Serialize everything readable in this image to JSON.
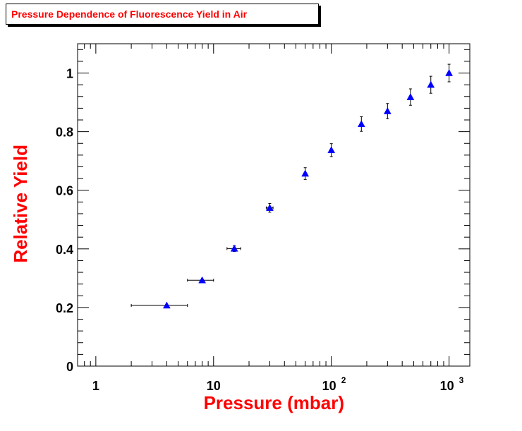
{
  "title": "Pressure Dependence of Fluorescence Yield in Air",
  "colors": {
    "title": "#ff0000",
    "axis_titles": "#ff0000",
    "markers": "#0000ff",
    "error_bars": "#000000",
    "frame": "#000000"
  },
  "chart_data": {
    "type": "scatter",
    "title": "Pressure Dependence of Fluorescence Yield in Air",
    "xlabel": "Pressure (mbar)",
    "ylabel": "Relative Yield",
    "x_scale": "log",
    "xlim": [
      0.7,
      1500
    ],
    "ylim": [
      0,
      1.1
    ],
    "grid": false,
    "legend": "none",
    "marker": "triangle",
    "x_ticks": [
      {
        "label": "1",
        "value": 1
      },
      {
        "label": "10",
        "value": 10
      },
      {
        "label": "10",
        "exponent": "2",
        "value": 100
      },
      {
        "label": "10",
        "exponent": "3",
        "value": 1000
      }
    ],
    "y_ticks": [
      {
        "label": "0",
        "value": 0
      },
      {
        "label": "0.2",
        "value": 0.2
      },
      {
        "label": "0.4",
        "value": 0.4
      },
      {
        "label": "0.6",
        "value": 0.6
      },
      {
        "label": "0.8",
        "value": 0.8
      },
      {
        "label": "1",
        "value": 1
      }
    ],
    "points": [
      {
        "x": 4,
        "y": 0.207,
        "x_low": 2,
        "x_high": 6,
        "y_err": 0.0
      },
      {
        "x": 8,
        "y": 0.293,
        "x_low": 6,
        "x_high": 10,
        "y_err": 0.0
      },
      {
        "x": 15,
        "y": 0.401,
        "x_low": 13,
        "x_high": 17,
        "y_err": 0.01
      },
      {
        "x": 30,
        "y": 0.54,
        "x_low": 28,
        "x_high": 32,
        "y_err": 0.015
      },
      {
        "x": 60,
        "y": 0.657,
        "x_low": 60,
        "x_high": 60,
        "y_err": 0.02
      },
      {
        "x": 100,
        "y": 0.737,
        "x_low": 100,
        "x_high": 100,
        "y_err": 0.022
      },
      {
        "x": 180,
        "y": 0.826,
        "x_low": 180,
        "x_high": 180,
        "y_err": 0.025
      },
      {
        "x": 300,
        "y": 0.87,
        "x_low": 300,
        "x_high": 300,
        "y_err": 0.026
      },
      {
        "x": 470,
        "y": 0.918,
        "x_low": 470,
        "x_high": 470,
        "y_err": 0.028
      },
      {
        "x": 700,
        "y": 0.96,
        "x_low": 700,
        "x_high": 700,
        "y_err": 0.029
      },
      {
        "x": 1000,
        "y": 1.0,
        "x_low": 1000,
        "x_high": 1000,
        "y_err": 0.03
      }
    ]
  }
}
